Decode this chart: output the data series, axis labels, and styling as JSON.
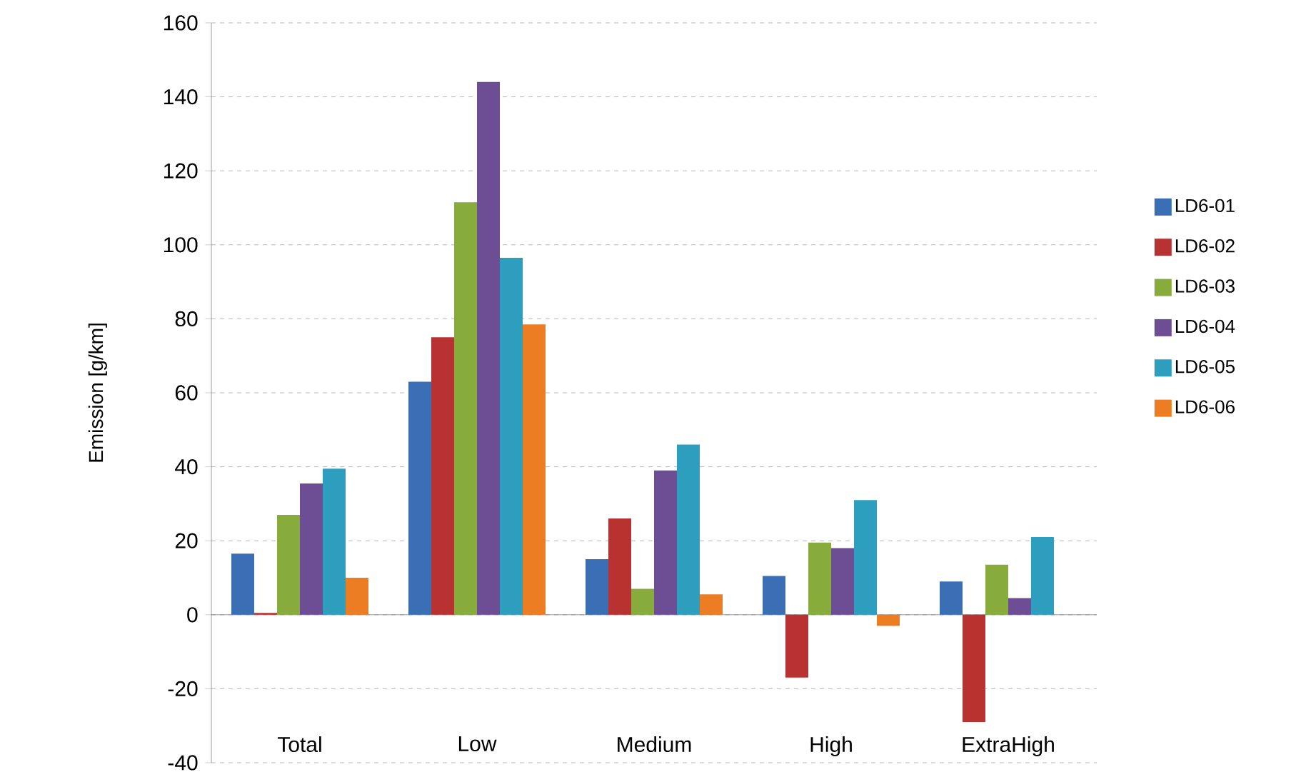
{
  "chart_data": {
    "type": "bar",
    "ylabel": "Emission [g/km]",
    "categories": [
      "Total",
      "Low",
      "Medium",
      "High",
      "ExtraHigh"
    ],
    "series": [
      {
        "name": "LD6-01",
        "color": "#3a6eb5",
        "values": [
          16.5,
          63,
          15,
          10.5,
          9
        ]
      },
      {
        "name": "LD6-02",
        "color": "#b83232",
        "values": [
          0.5,
          75,
          26,
          -17,
          -29
        ]
      },
      {
        "name": "LD6-03",
        "color": "#88ac3c",
        "values": [
          27,
          111.5,
          7,
          19.5,
          13.5
        ]
      },
      {
        "name": "LD6-04",
        "color": "#6d4e94",
        "values": [
          35.5,
          144,
          39,
          18,
          4.5
        ]
      },
      {
        "name": "LD6-05",
        "color": "#2e9ebf",
        "values": [
          39.5,
          96.5,
          46,
          31,
          21
        ]
      },
      {
        "name": "LD6-06",
        "color": "#ec7d22",
        "values": [
          10,
          78.5,
          5.5,
          -3,
          null
        ]
      }
    ],
    "ylim": [
      -40,
      160
    ],
    "yticks": [
      -40,
      -20,
      0,
      20,
      40,
      60,
      80,
      100,
      120,
      140,
      160
    ],
    "grid": "y",
    "legend": "right"
  }
}
